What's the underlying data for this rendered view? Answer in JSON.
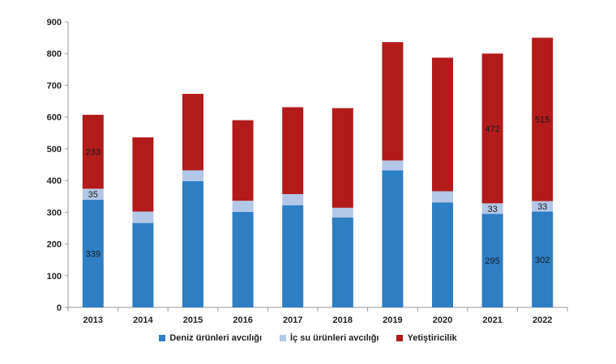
{
  "chart_data": {
    "type": "bar",
    "stacked": true,
    "categories": [
      "2013",
      "2014",
      "2015",
      "2016",
      "2017",
      "2018",
      "2019",
      "2020",
      "2021",
      "2022"
    ],
    "ylim": [
      0,
      900
    ],
    "yticks": [
      0,
      100,
      200,
      300,
      400,
      500,
      600,
      700,
      800,
      900
    ],
    "grid": false,
    "legend_position": "bottom",
    "series": [
      {
        "name": "Deniz ürünleri avcılığı",
        "color": "#2e7ec4",
        "values": [
          339,
          266,
          398,
          301,
          322,
          283,
          432,
          331,
          295,
          302
        ],
        "labels": [
          "339",
          "",
          "",
          "",
          "",
          "",
          "",
          "",
          "295",
          "302"
        ]
      },
      {
        "name": "İç su ürünleri avcılığı",
        "color": "#b3c7e8",
        "values": [
          35,
          36,
          34,
          35,
          35,
          31,
          31,
          35,
          33,
          33
        ],
        "labels": [
          "35",
          "",
          "",
          "",
          "",
          "",
          "",
          "",
          "33",
          "33"
        ]
      },
      {
        "name": "Yetiştiricilik",
        "color": "#b31b1b",
        "values": [
          233,
          234,
          241,
          254,
          274,
          314,
          373,
          421,
          472,
          515
        ],
        "labels": [
          "233",
          "",
          "",
          "",
          "",
          "",
          "",
          "",
          "472",
          "515"
        ]
      }
    ]
  }
}
